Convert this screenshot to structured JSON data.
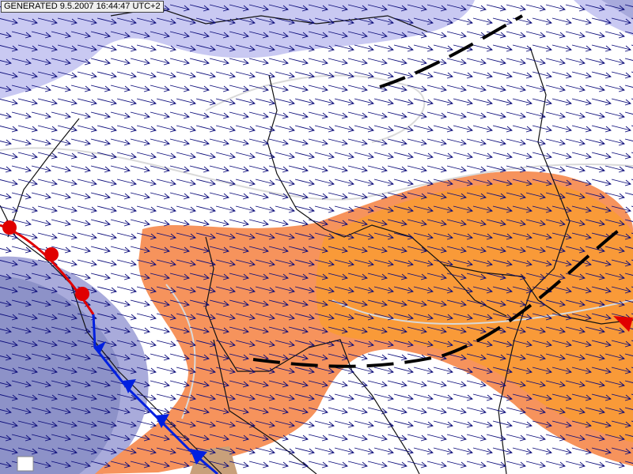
{
  "header": {
    "timestamp": "GENERATED 9.5.2007 16:44:47 UTC+2"
  }
}
